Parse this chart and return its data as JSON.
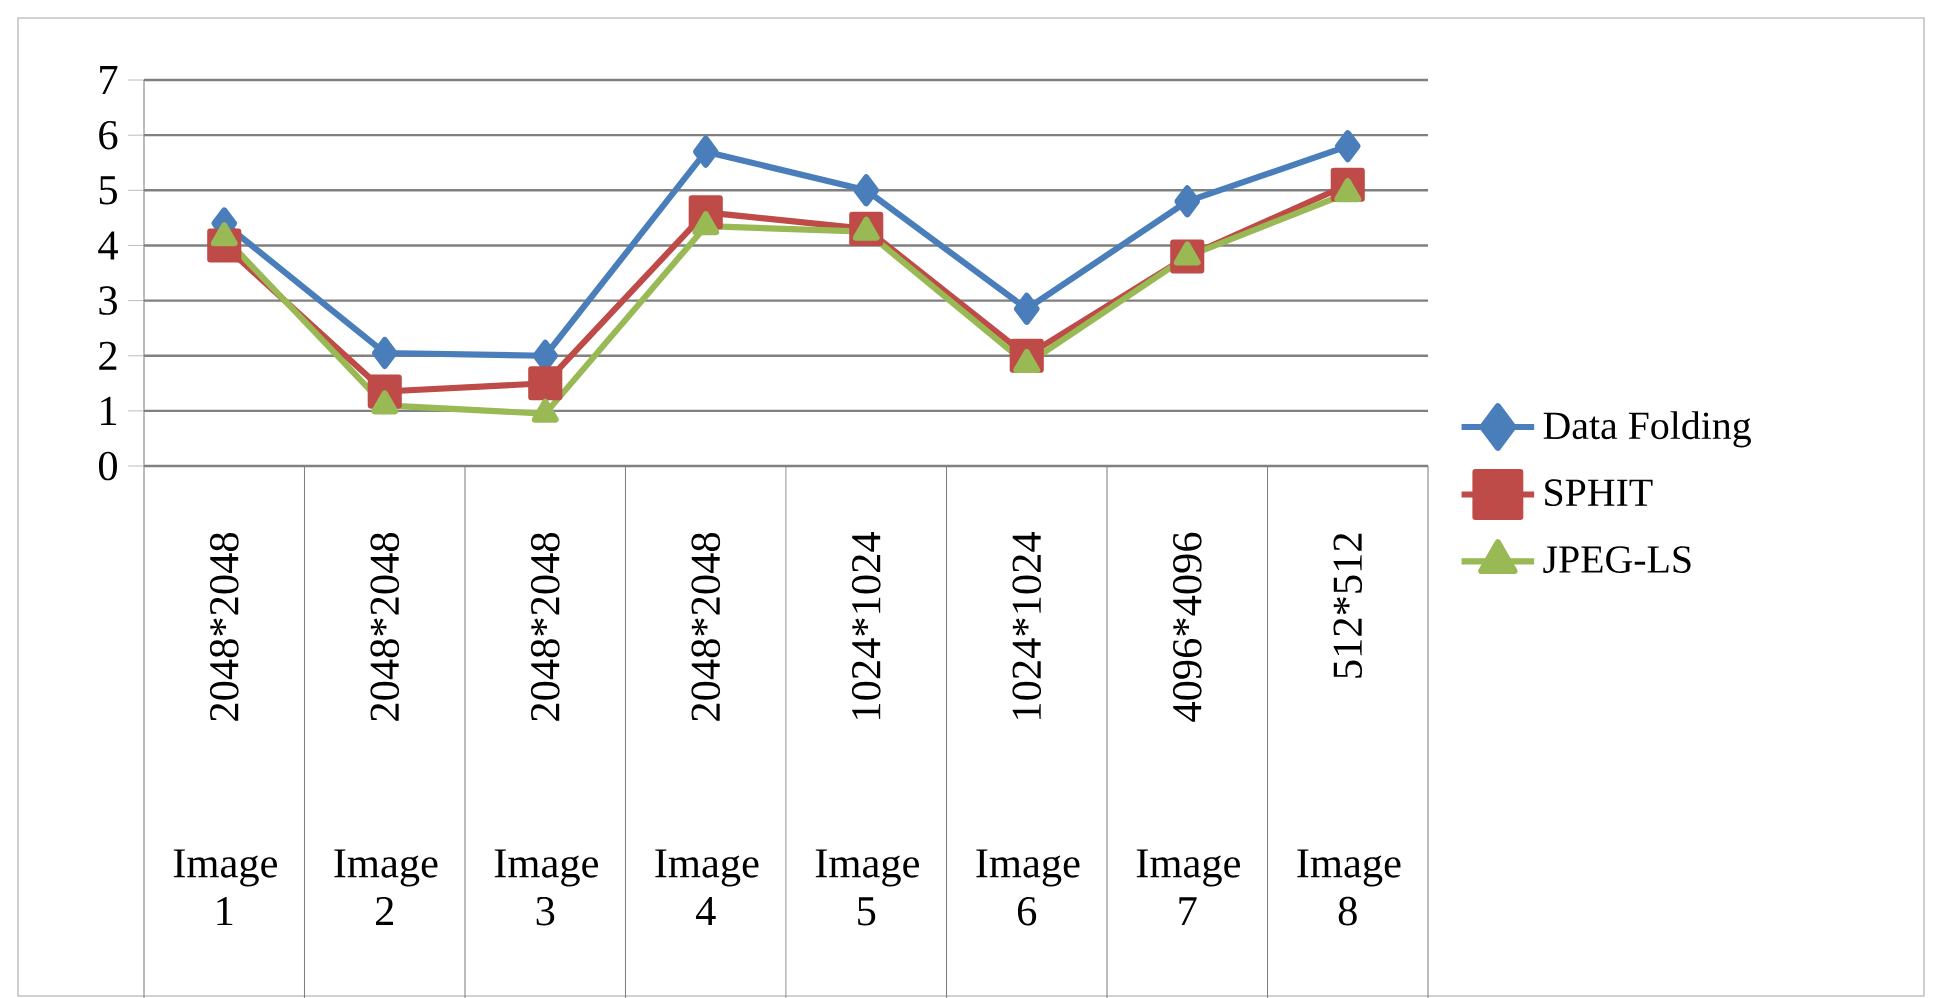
{
  "chart_data": {
    "type": "line",
    "categories": [
      "2048*2048",
      "2048*2048",
      "2048*2048",
      "2048*2048",
      "1024*1024",
      "1024*1024",
      "4096*4096",
      "512*512"
    ],
    "annotations": [
      "Image 1",
      "Image 2",
      "Image 3",
      "Image 4",
      "Image 5",
      "Image 6",
      "Image 7",
      "Image 8"
    ],
    "series": [
      {
        "name": "Data Folding",
        "color": "#4a7ebb",
        "marker": "diamond",
        "values": [
          4.4,
          2.05,
          2.0,
          5.7,
          5.0,
          2.85,
          4.8,
          5.8
        ]
      },
      {
        "name": "SPHIT",
        "color": "#be4b48",
        "marker": "square",
        "values": [
          4.0,
          1.35,
          1.5,
          4.6,
          4.3,
          2.0,
          3.8,
          5.1
        ]
      },
      {
        "name": "JPEG-LS",
        "color": "#98b954",
        "marker": "triangle",
        "values": [
          4.15,
          1.1,
          0.95,
          4.35,
          4.25,
          1.85,
          3.8,
          4.95
        ]
      }
    ],
    "ylim": [
      0,
      7
    ],
    "yticks": [
      0,
      1,
      2,
      3,
      4,
      5,
      6,
      7
    ],
    "grid": "y",
    "legend": "right",
    "line_style": "solid"
  }
}
